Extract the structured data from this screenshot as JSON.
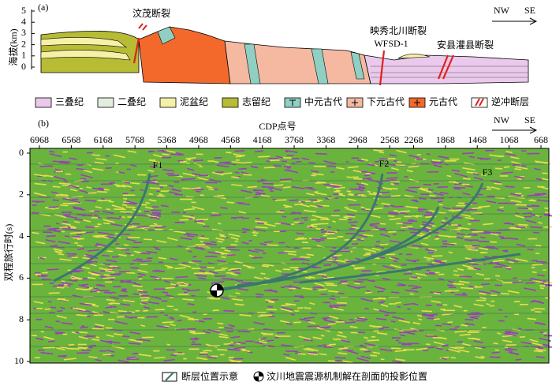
{
  "panel_a": {
    "label": "(a)",
    "y_axis_title": "海拔(km)",
    "y_ticks": [
      5,
      4,
      3,
      2,
      1,
      0
    ],
    "fault_names": [
      "汶茂断裂",
      "映秀北川断裂",
      "安县灌县断裂"
    ],
    "well": "WFSD-1",
    "direction": [
      "NW",
      "SE"
    ],
    "legend": [
      "三叠纪",
      "二叠纪",
      "泥盆纪",
      "志留纪",
      "中元古代",
      "下元古代",
      "元古代",
      "逆冲断层"
    ]
  },
  "panel_b": {
    "label": "(b)",
    "x_axis_title": "CDP点号",
    "x_ticks": [
      6968,
      6568,
      6168,
      5768,
      5368,
      4968,
      4568,
      4168,
      3768,
      3368,
      2968,
      2568,
      2268,
      1868,
      1468,
      1068,
      668
    ],
    "y_axis_title": "双程旅行时(s)",
    "y_ticks": [
      0,
      2,
      4,
      6,
      8,
      10
    ],
    "direction": [
      "NW",
      "SE"
    ],
    "fault_labels": [
      "F1",
      "F2",
      "F3"
    ]
  },
  "legend": [
    "断层位置示意",
    "汶川地震震源机制解在剖面的投影位置"
  ]
}
